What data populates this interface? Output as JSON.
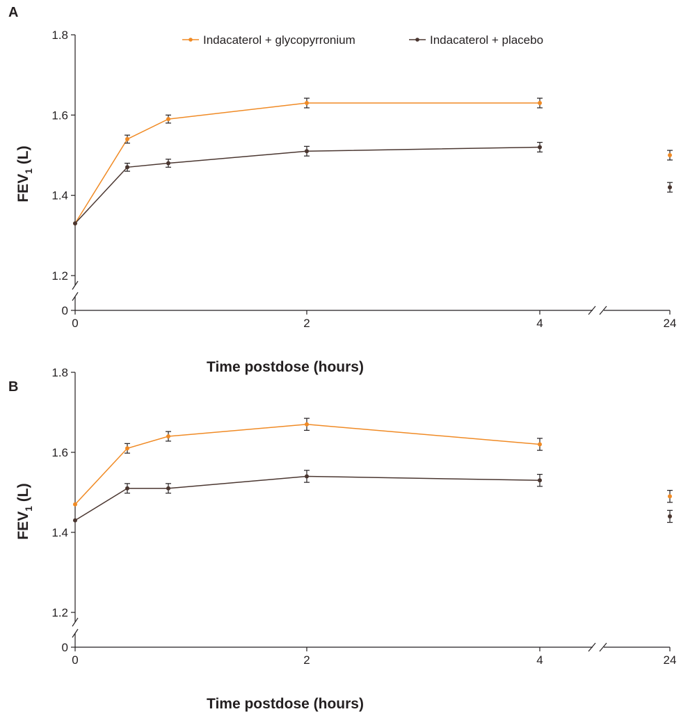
{
  "colors": {
    "series1": "#f08a24",
    "series2": "#4a3630",
    "axis": "#231f20"
  },
  "legend": {
    "items": [
      "Indacaterol + glycopyrronium",
      "Indacaterol + placebo"
    ],
    "placement": "top"
  },
  "chart_data": [
    {
      "panel": "A",
      "type": "line",
      "title": "",
      "xlabel": "Time postdose (hours)",
      "ylabel_main": "FEV",
      "ylabel_sub": "1",
      "ylabel_unit": " (L)",
      "x": [
        0,
        0.5,
        1,
        2,
        4,
        24
      ],
      "x_ticks": [
        "0",
        "2",
        "4",
        "24"
      ],
      "x_axis_break": true,
      "y_ticks": [
        "0",
        "1.2",
        "1.4",
        "1.6",
        "1.8"
      ],
      "y_axis_break": true,
      "ylim": [
        1.2,
        1.8
      ],
      "grid": false,
      "series": [
        {
          "name": "Indacaterol + glycopyrronium",
          "values": [
            1.33,
            1.54,
            1.59,
            1.63,
            1.63,
            1.5
          ],
          "error": [
            0,
            0.01,
            0.01,
            0.012,
            0.012,
            0.012
          ]
        },
        {
          "name": "Indacaterol + placebo",
          "values": [
            1.33,
            1.47,
            1.48,
            1.51,
            1.52,
            1.42
          ],
          "error": [
            0,
            0.01,
            0.01,
            0.012,
            0.012,
            0.012
          ]
        }
      ]
    },
    {
      "panel": "B",
      "type": "line",
      "title": "",
      "xlabel": "Time postdose (hours)",
      "ylabel_main": "FEV",
      "ylabel_sub": "1",
      "ylabel_unit": " (L)",
      "x": [
        0,
        0.5,
        1,
        2,
        4,
        24
      ],
      "x_ticks": [
        "0",
        "2",
        "4",
        "24"
      ],
      "x_axis_break": true,
      "y_ticks": [
        "0",
        "1.2",
        "1.4",
        "1.6",
        "1.8"
      ],
      "y_axis_break": true,
      "ylim": [
        1.2,
        1.8
      ],
      "grid": false,
      "series": [
        {
          "name": "Indacaterol + glycopyrronium",
          "values": [
            1.47,
            1.61,
            1.64,
            1.67,
            1.62,
            1.49
          ],
          "error": [
            0,
            0.012,
            0.012,
            0.015,
            0.015,
            0.015
          ]
        },
        {
          "name": "Indacaterol + placebo",
          "values": [
            1.43,
            1.51,
            1.51,
            1.54,
            1.53,
            1.44
          ],
          "error": [
            0,
            0.012,
            0.012,
            0.015,
            0.015,
            0.015
          ]
        }
      ]
    }
  ]
}
